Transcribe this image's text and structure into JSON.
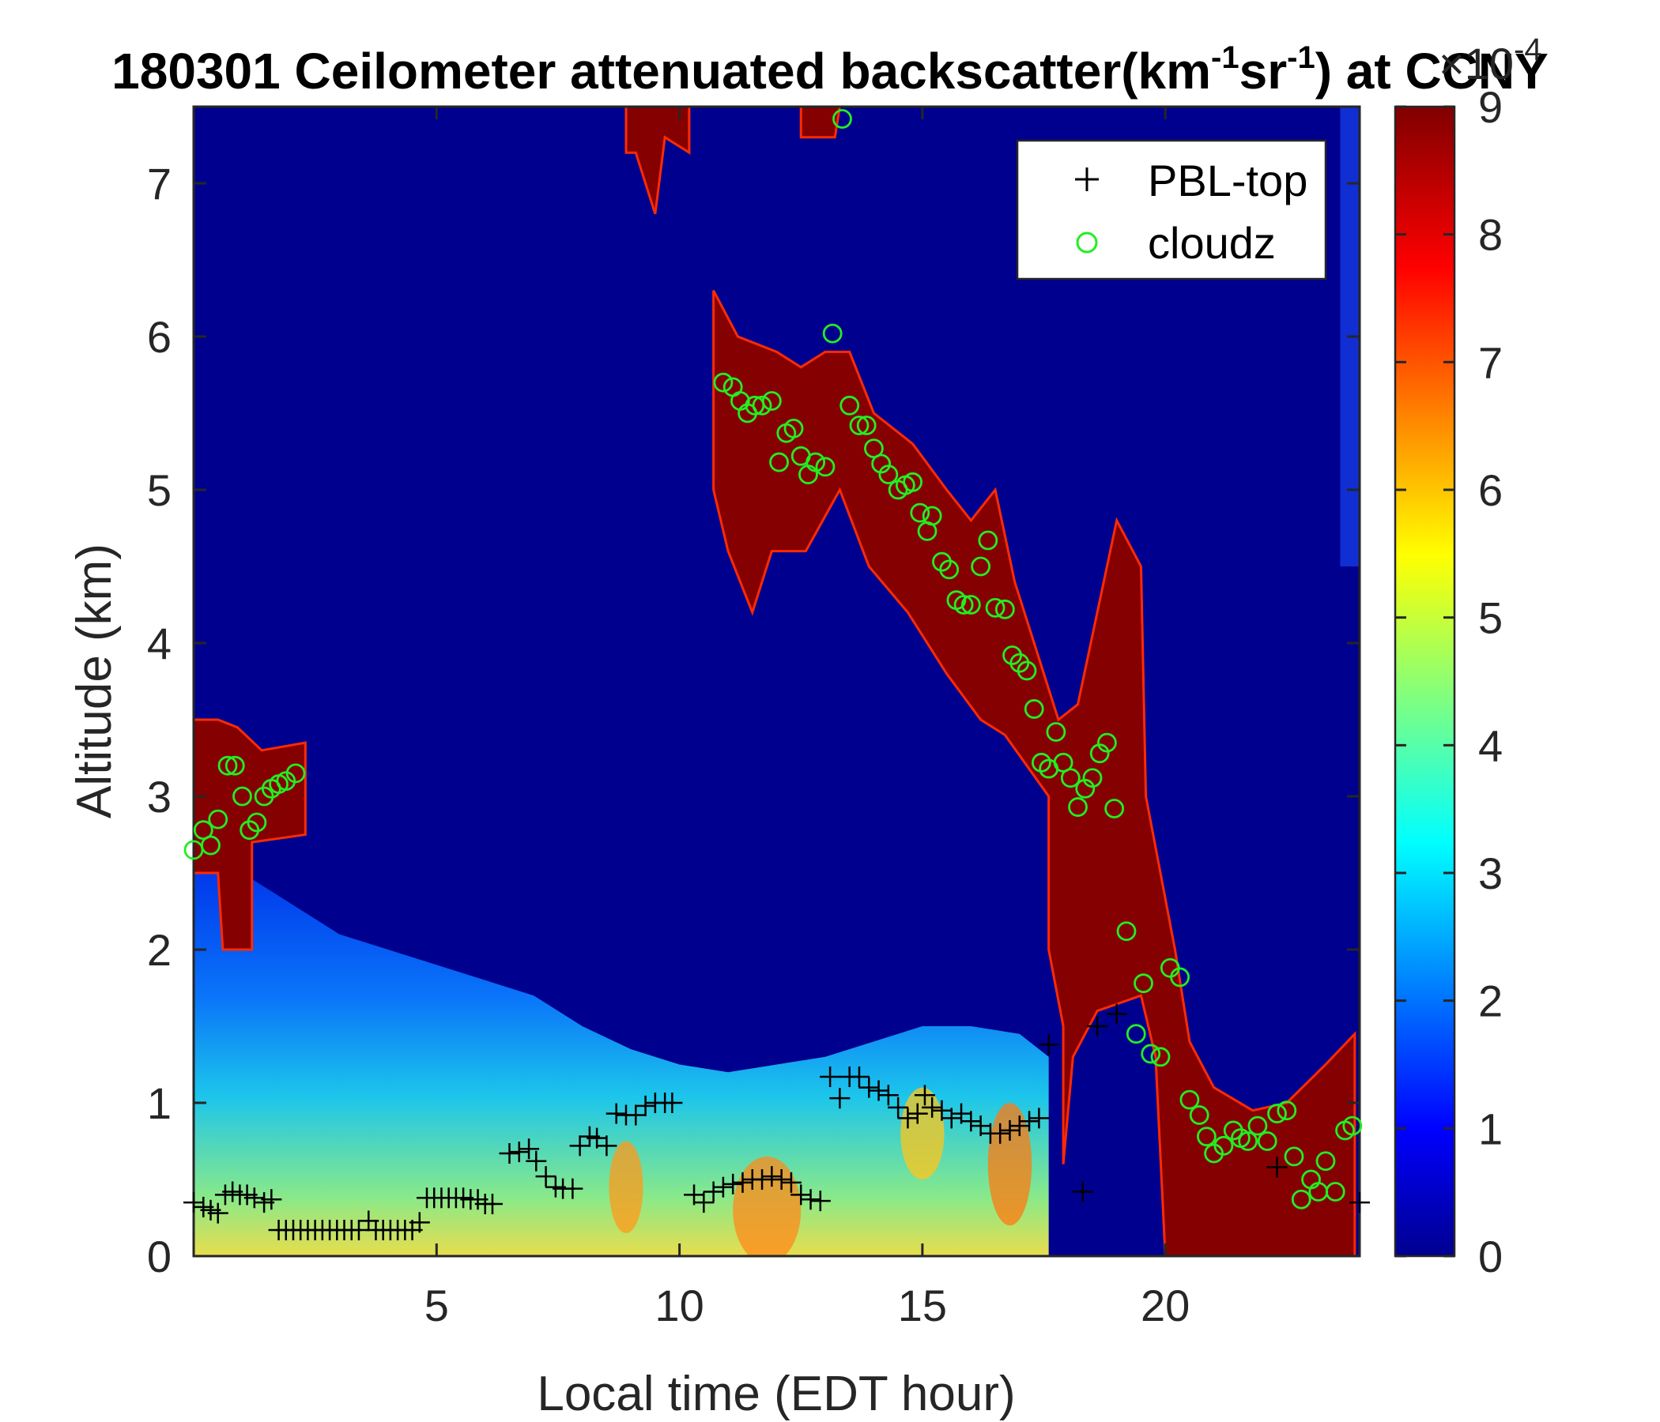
{
  "chart_data": {
    "type": "heatmap",
    "title": {
      "prefix": "180301 Ceilometer attenuated backscatter(km",
      "sup1": "-1",
      "mid": "sr",
      "sup2": "-1",
      "suffix": ") at CCNY"
    },
    "xlabel": "Local time (EDT hour)",
    "ylabel": "Altitude (km)",
    "xlim": [
      0,
      24
    ],
    "ylim": [
      0,
      7.5
    ],
    "xticks": [
      5,
      10,
      15,
      20
    ],
    "yticks": [
      0,
      1,
      2,
      3,
      4,
      5,
      6,
      7
    ],
    "colorbar": {
      "colormap": "jet",
      "range": [
        0,
        9
      ],
      "ticks": [
        0,
        1,
        2,
        3,
        4,
        5,
        6,
        7,
        8,
        9
      ],
      "exponent_base": "×10",
      "exponent": "-4"
    },
    "legend": {
      "position": "top-right",
      "entries": [
        {
          "label": "PBL-top",
          "marker": "+",
          "color": "#000000"
        },
        {
          "label": "cloudz",
          "marker": "o",
          "color": "#22ee22"
        }
      ]
    },
    "series": [
      {
        "name": "PBL-top",
        "points": [
          [
            0,
            0.35
          ],
          [
            0.2,
            0.32
          ],
          [
            0.35,
            0.3
          ],
          [
            0.5,
            0.28
          ],
          [
            0.65,
            0.4
          ],
          [
            0.8,
            0.42
          ],
          [
            0.95,
            0.4
          ],
          [
            1.1,
            0.4
          ],
          [
            1.25,
            0.38
          ],
          [
            1.45,
            0.35
          ],
          [
            1.6,
            0.37
          ],
          [
            1.75,
            0.17
          ],
          [
            1.9,
            0.17
          ],
          [
            2.05,
            0.17
          ],
          [
            2.2,
            0.17
          ],
          [
            2.35,
            0.17
          ],
          [
            2.5,
            0.17
          ],
          [
            2.65,
            0.17
          ],
          [
            2.8,
            0.17
          ],
          [
            2.95,
            0.17
          ],
          [
            3.1,
            0.17
          ],
          [
            3.25,
            0.17
          ],
          [
            3.4,
            0.17
          ],
          [
            3.6,
            0.23
          ],
          [
            3.75,
            0.17
          ],
          [
            3.9,
            0.17
          ],
          [
            4.05,
            0.17
          ],
          [
            4.2,
            0.17
          ],
          [
            4.35,
            0.17
          ],
          [
            4.5,
            0.17
          ],
          [
            4.65,
            0.22
          ],
          [
            4.8,
            0.38
          ],
          [
            4.95,
            0.38
          ],
          [
            5.1,
            0.38
          ],
          [
            5.25,
            0.38
          ],
          [
            5.4,
            0.38
          ],
          [
            5.55,
            0.38
          ],
          [
            5.7,
            0.37
          ],
          [
            5.85,
            0.37
          ],
          [
            6.0,
            0.34
          ],
          [
            6.15,
            0.34
          ],
          [
            6.5,
            0.67
          ],
          [
            6.7,
            0.68
          ],
          [
            6.9,
            0.7
          ],
          [
            7.05,
            0.62
          ],
          [
            7.25,
            0.52
          ],
          [
            7.45,
            0.45
          ],
          [
            7.6,
            0.44
          ],
          [
            7.8,
            0.44
          ],
          [
            7.95,
            0.72
          ],
          [
            8.15,
            0.78
          ],
          [
            8.3,
            0.77
          ],
          [
            8.5,
            0.72
          ],
          [
            8.7,
            0.93
          ],
          [
            8.9,
            0.92
          ],
          [
            9.1,
            0.92
          ],
          [
            9.3,
            0.98
          ],
          [
            9.5,
            1.0
          ],
          [
            9.7,
            1.0
          ],
          [
            9.85,
            1.0
          ],
          [
            10.3,
            0.4
          ],
          [
            10.5,
            0.35
          ],
          [
            10.7,
            0.42
          ],
          [
            10.9,
            0.45
          ],
          [
            11.1,
            0.47
          ],
          [
            11.3,
            0.48
          ],
          [
            11.5,
            0.5
          ],
          [
            11.7,
            0.5
          ],
          [
            11.9,
            0.52
          ],
          [
            12.1,
            0.5
          ],
          [
            12.3,
            0.48
          ],
          [
            12.5,
            0.4
          ],
          [
            12.7,
            0.37
          ],
          [
            12.9,
            0.36
          ],
          [
            13.1,
            1.17
          ],
          [
            13.3,
            1.03
          ],
          [
            13.5,
            1.17
          ],
          [
            13.7,
            1.17
          ],
          [
            13.9,
            1.1
          ],
          [
            14.1,
            1.08
          ],
          [
            14.3,
            1.05
          ],
          [
            14.5,
            0.97
          ],
          [
            14.7,
            0.9
          ],
          [
            14.9,
            0.93
          ],
          [
            15.05,
            1.05
          ],
          [
            15.2,
            0.97
          ],
          [
            15.4,
            0.95
          ],
          [
            15.6,
            0.9
          ],
          [
            15.8,
            0.93
          ],
          [
            16.0,
            0.88
          ],
          [
            16.2,
            0.85
          ],
          [
            16.4,
            0.8
          ],
          [
            16.6,
            0.8
          ],
          [
            16.8,
            0.82
          ],
          [
            17.0,
            0.85
          ],
          [
            17.2,
            0.88
          ],
          [
            17.4,
            0.9
          ],
          [
            17.6,
            1.38
          ],
          [
            18.3,
            0.42
          ],
          [
            18.6,
            1.5
          ],
          [
            19.0,
            1.58
          ],
          [
            22.3,
            0.58
          ],
          [
            24.0,
            0.35
          ]
        ]
      },
      {
        "name": "cloudz",
        "points": [
          [
            0,
            2.65
          ],
          [
            0.2,
            2.78
          ],
          [
            0.35,
            2.68
          ],
          [
            0.5,
            2.85
          ],
          [
            0.7,
            3.2
          ],
          [
            0.85,
            3.2
          ],
          [
            1.0,
            3.0
          ],
          [
            1.15,
            2.78
          ],
          [
            1.3,
            2.83
          ],
          [
            1.45,
            3.0
          ],
          [
            1.6,
            3.05
          ],
          [
            1.75,
            3.08
          ],
          [
            1.9,
            3.1
          ],
          [
            2.1,
            3.15
          ],
          [
            10.9,
            5.7
          ],
          [
            11.1,
            5.67
          ],
          [
            11.25,
            5.58
          ],
          [
            11.4,
            5.5
          ],
          [
            11.55,
            5.55
          ],
          [
            11.7,
            5.55
          ],
          [
            11.9,
            5.58
          ],
          [
            12.05,
            5.18
          ],
          [
            12.2,
            5.37
          ],
          [
            12.35,
            5.4
          ],
          [
            12.5,
            5.22
          ],
          [
            12.65,
            5.1
          ],
          [
            12.8,
            5.18
          ],
          [
            13.0,
            5.15
          ],
          [
            13.15,
            6.02
          ],
          [
            13.35,
            7.42
          ],
          [
            13.5,
            5.55
          ],
          [
            13.7,
            5.42
          ],
          [
            13.85,
            5.42
          ],
          [
            14.0,
            5.27
          ],
          [
            14.15,
            5.17
          ],
          [
            14.3,
            5.1
          ],
          [
            14.5,
            5.0
          ],
          [
            14.65,
            5.03
          ],
          [
            14.8,
            5.05
          ],
          [
            14.95,
            4.85
          ],
          [
            15.1,
            4.73
          ],
          [
            15.2,
            4.83
          ],
          [
            15.4,
            4.53
          ],
          [
            15.55,
            4.48
          ],
          [
            15.7,
            4.28
          ],
          [
            15.85,
            4.25
          ],
          [
            16.0,
            4.25
          ],
          [
            16.2,
            4.5
          ],
          [
            16.35,
            4.67
          ],
          [
            16.5,
            4.23
          ],
          [
            16.7,
            4.22
          ],
          [
            16.85,
            3.92
          ],
          [
            17.0,
            3.87
          ],
          [
            17.15,
            3.82
          ],
          [
            17.3,
            3.57
          ],
          [
            17.45,
            3.22
          ],
          [
            17.6,
            3.18
          ],
          [
            17.75,
            3.42
          ],
          [
            17.9,
            3.22
          ],
          [
            18.05,
            3.12
          ],
          [
            18.2,
            2.93
          ],
          [
            18.35,
            3.05
          ],
          [
            18.5,
            3.12
          ],
          [
            18.65,
            3.28
          ],
          [
            18.8,
            3.35
          ],
          [
            18.95,
            2.92
          ],
          [
            19.2,
            2.12
          ],
          [
            19.4,
            1.45
          ],
          [
            19.55,
            1.78
          ],
          [
            19.7,
            1.32
          ],
          [
            19.9,
            1.3
          ],
          [
            20.1,
            1.88
          ],
          [
            20.3,
            1.82
          ],
          [
            20.5,
            1.02
          ],
          [
            20.7,
            0.92
          ],
          [
            20.85,
            0.78
          ],
          [
            21.0,
            0.67
          ],
          [
            21.2,
            0.72
          ],
          [
            21.4,
            0.82
          ],
          [
            21.55,
            0.77
          ],
          [
            21.7,
            0.75
          ],
          [
            21.9,
            0.85
          ],
          [
            22.1,
            0.75
          ],
          [
            22.3,
            0.93
          ],
          [
            22.5,
            0.95
          ],
          [
            22.65,
            0.65
          ],
          [
            22.8,
            0.37
          ],
          [
            23.0,
            0.5
          ],
          [
            23.15,
            0.42
          ],
          [
            23.3,
            0.62
          ],
          [
            23.5,
            0.42
          ],
          [
            23.7,
            0.82
          ],
          [
            23.85,
            0.85
          ]
        ]
      }
    ]
  }
}
